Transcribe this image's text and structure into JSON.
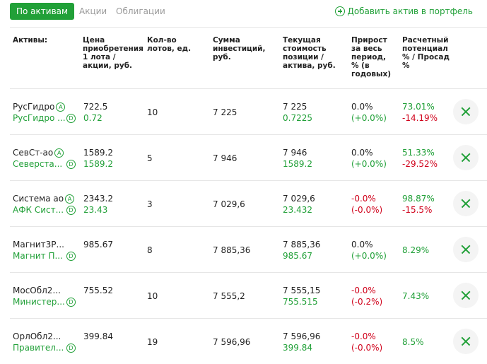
{
  "tabs": [
    {
      "label": "По активам",
      "active": true
    },
    {
      "label": "Акции",
      "active": false
    },
    {
      "label": "Облигации",
      "active": false
    }
  ],
  "add_asset_label": "Добавить актив в портфель",
  "headers": {
    "asset": "Активы:",
    "price": "Цена приобретения 1 лота / акции, руб.",
    "lots": "Кол-во лотов, ед.",
    "investment": "Сумма инвестиций, руб.",
    "current": "Текущая стоимость позиции / актива, руб.",
    "growth": "Прирост за весь период, % (в годовых)",
    "potential": "Расчетный потенциал % / Просад %"
  },
  "rows": [
    {
      "name": "РусГидро",
      "badge1": "A",
      "sub": "РусГидро ...",
      "badge2": "D",
      "price": "722.5",
      "price_sub": "0.72",
      "lots": "10",
      "investment": "7 225",
      "current": "7 225",
      "current_sub": "0.7225",
      "growth": "0.0%",
      "growth_sub": "(+0.0%)",
      "potential": "73.01%",
      "drawdown": "-14.19%"
    },
    {
      "name": "СевСт-ао",
      "badge1": "A",
      "sub": "Северста...",
      "badge2": "D",
      "price": "1589.2",
      "price_sub": "1589.2",
      "lots": "5",
      "investment": "7 946",
      "current": "7 946",
      "current_sub": "1589.2",
      "growth": "0.0%",
      "growth_sub": "(+0.0%)",
      "potential": "51.33%",
      "drawdown": "-29.52%"
    },
    {
      "name": "Система ао",
      "badge1": "A",
      "sub": "АФК Сист...",
      "badge2": "D",
      "price": "2343.2",
      "price_sub": "23.43",
      "lots": "3",
      "investment": "7 029,6",
      "current": "7 029,6",
      "current_sub": "23.432",
      "growth": "-0.0%",
      "growth_sub": "(-0.0%)",
      "potential": "98.87%",
      "drawdown": "-15.5%"
    },
    {
      "name": "Магнит3Р...",
      "badge1": "",
      "sub": "Магнит П...",
      "badge2": "D",
      "price": "985.67",
      "price_sub": "",
      "lots": "8",
      "investment": "7 885,36",
      "current": "7 885,36",
      "current_sub": "985.67",
      "growth": "0.0%",
      "growth_sub": "(+0.0%)",
      "potential": "8.29%",
      "drawdown": ""
    },
    {
      "name": "МосОбл2...",
      "badge1": "",
      "sub": "Министер...",
      "badge2": "D",
      "price": "755.52",
      "price_sub": "",
      "lots": "10",
      "investment": "7 555,2",
      "current": "7 555,15",
      "current_sub": "755.515",
      "growth": "-0.0%",
      "growth_sub": "(-0.2%)",
      "potential": "7.43%",
      "drawdown": ""
    },
    {
      "name": "ОрлОбл2...",
      "badge1": "",
      "sub": "Правител...",
      "badge2": "D",
      "price": "399.84",
      "price_sub": "",
      "lots": "19",
      "investment": "7 596,96",
      "current": "7 596,96",
      "current_sub": "399.84",
      "growth": "-0.0%",
      "growth_sub": "(-0.0%)",
      "potential": "8.5%",
      "drawdown": ""
    }
  ],
  "colors": {
    "accent": "#21a038",
    "negative": "#d0021b"
  },
  "icons": {
    "add": "plus-circle-icon",
    "delete": "close-icon"
  }
}
